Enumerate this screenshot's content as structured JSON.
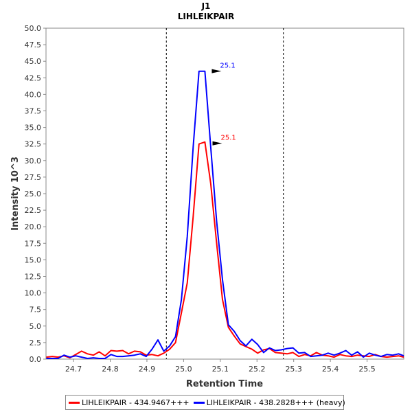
{
  "chart_data": {
    "type": "line",
    "title": "J1",
    "subtitle": "LIHLEIKPAIR",
    "xlabel": "Retention Time",
    "ylabel": "Intensity 10^3",
    "xlim": [
      24.625,
      25.6
    ],
    "ylim": [
      0,
      50
    ],
    "x_ticks": [
      "24.7",
      "24.8",
      "24.9",
      "25.0",
      "25.1",
      "25.2",
      "25.3",
      "25.4",
      "25.5"
    ],
    "x_tick_values": [
      24.7,
      24.8,
      24.9,
      25.0,
      25.1,
      25.2,
      25.3,
      25.4,
      25.5
    ],
    "y_ticks": [
      "0.0",
      "2.5",
      "5.0",
      "7.5",
      "10.0",
      "12.5",
      "15.0",
      "17.5",
      "20.0",
      "22.5",
      "25.0",
      "27.5",
      "30.0",
      "32.5",
      "35.0",
      "37.5",
      "40.0",
      "42.5",
      "45.0",
      "47.5",
      "50.0"
    ],
    "y_tick_values": [
      0,
      2.5,
      5,
      7.5,
      10,
      12.5,
      15,
      17.5,
      20,
      22.5,
      25,
      27.5,
      30,
      32.5,
      35,
      37.5,
      40,
      42.5,
      45,
      47.5,
      50
    ],
    "vlines": [
      24.953,
      25.272
    ],
    "x": [
      24.626,
      24.642,
      24.658,
      24.674,
      24.69,
      24.706,
      24.722,
      24.738,
      24.754,
      24.77,
      24.786,
      24.802,
      24.818,
      24.834,
      24.85,
      24.866,
      24.882,
      24.898,
      24.914,
      24.93,
      24.946,
      24.962,
      24.978,
      24.994,
      25.01,
      25.026,
      25.042,
      25.058,
      25.074,
      25.09,
      25.106,
      25.122,
      25.138,
      25.154,
      25.17,
      25.186,
      25.202,
      25.218,
      25.234,
      25.25,
      25.266,
      25.282,
      25.298,
      25.314,
      25.33,
      25.346,
      25.362,
      25.378,
      25.394,
      25.41,
      25.426,
      25.442,
      25.458,
      25.474,
      25.49,
      25.506,
      25.522,
      25.538,
      25.554,
      25.57,
      25.586,
      25.6
    ],
    "series": [
      {
        "name": "LIHLEIKPAIR - 434.9467+++",
        "color": "#ff0000",
        "values": [
          0.3,
          0.4,
          0.3,
          0.5,
          0.2,
          0.7,
          1.2,
          0.8,
          0.6,
          1.1,
          0.5,
          1.3,
          1.2,
          1.3,
          0.8,
          1.2,
          1.1,
          0.6,
          0.7,
          0.5,
          0.9,
          1.5,
          2.5,
          7.0,
          11.5,
          21.5,
          32.5,
          32.8,
          26.5,
          17.5,
          9.0,
          4.8,
          3.5,
          2.3,
          1.9,
          1.5,
          0.9,
          1.4,
          1.6,
          1.0,
          0.9,
          0.8,
          1.0,
          0.4,
          0.7,
          0.5,
          1.0,
          0.6,
          0.5,
          0.3,
          0.7,
          0.5,
          0.4,
          0.6,
          0.5,
          0.4,
          0.7,
          0.4,
          0.3,
          0.4,
          0.5,
          0.3
        ],
        "peak_label": "25.1",
        "peak_x": 25.105,
        "peak_y": 32.6
      },
      {
        "name": "LIHLEIKPAIR - 438.2828+++ (heavy)",
        "color": "#0000ff",
        "values": [
          0.1,
          0.1,
          0.1,
          0.6,
          0.3,
          0.5,
          0.3,
          0.1,
          0.2,
          0.1,
          0.1,
          0.7,
          0.4,
          0.4,
          0.5,
          0.6,
          0.8,
          0.4,
          1.5,
          2.9,
          1.2,
          2.0,
          3.4,
          9.0,
          18.5,
          32.0,
          43.5,
          43.5,
          32.0,
          20.8,
          12.0,
          5.2,
          4.2,
          2.8,
          2.0,
          3.0,
          2.2,
          1.0,
          1.7,
          1.3,
          1.4,
          1.6,
          1.7,
          0.9,
          1.0,
          0.4,
          0.5,
          0.6,
          0.9,
          0.6,
          0.9,
          1.3,
          0.6,
          1.1,
          0.3,
          0.9,
          0.6,
          0.4,
          0.7,
          0.6,
          0.8,
          0.5
        ],
        "peak_label": "25.1",
        "peak_x": 25.103,
        "peak_y": 43.5
      }
    ],
    "legend": [
      "LIHLEIKPAIR - 434.9467+++",
      "LIHLEIKPAIR - 438.2828+++ (heavy)"
    ]
  }
}
